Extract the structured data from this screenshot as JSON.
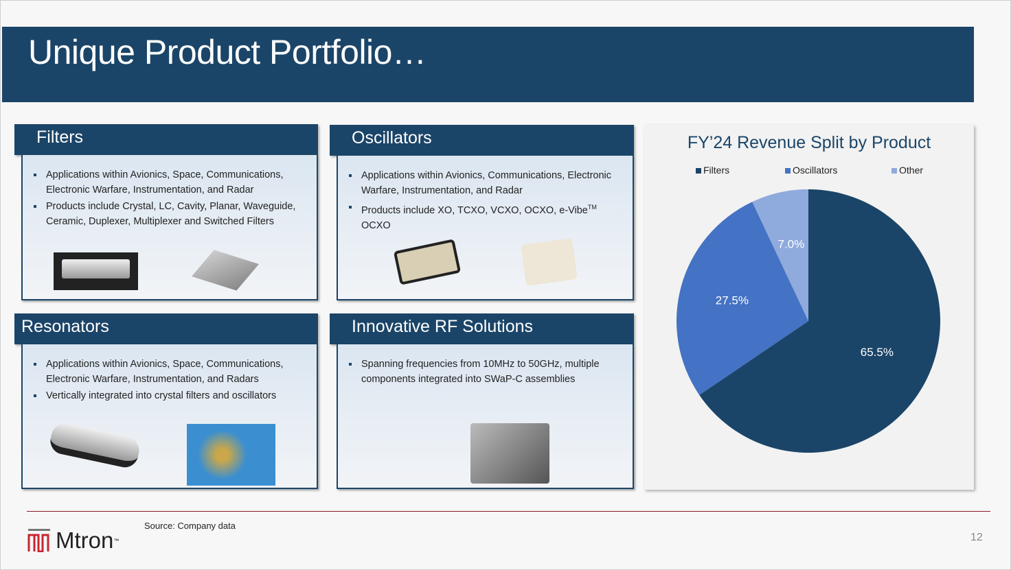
{
  "title": "Unique Product Portfolio…",
  "cards": [
    {
      "title": "Filters",
      "bullets": [
        "Applications within Avionics, Space, Communications, Electronic Warfare, Instrumentation, and Radar",
        "Products include Crystal, LC, Cavity, Planar, Waveguide, Ceramic, Duplexer, Multiplexer and Switched Filters"
      ]
    },
    {
      "title": "Oscillators",
      "bullets": [
        "Applications within Avionics, Communications, Electronic Warfare, Instrumentation, and Radar",
        "Products include XO, TCXO, VCXO, OCXO, e-Vibe"
      ],
      "sup": "TM",
      "tail": " OCXO"
    },
    {
      "title": "Resonators",
      "bullets": [
        "Applications within Avionics, Space, Communications, Electronic Warfare, Instrumentation, and Radars",
        "Vertically integrated into crystal filters and oscillators"
      ]
    },
    {
      "title": "Innovative RF Solutions",
      "bullets": [
        "Spanning frequencies from 10MHz to 50GHz, multiple components integrated into SWaP-C assemblies"
      ]
    }
  ],
  "chart_data": {
    "type": "pie",
    "title": "FY’24 Revenue Split by Product",
    "categories": [
      "Filters",
      "Oscillators",
      "Other"
    ],
    "values": [
      65.5,
      27.5,
      7.0
    ],
    "labels": [
      "65.5%",
      "27.5%",
      "7.0%"
    ],
    "colors": [
      "#1b4568",
      "#4472c4",
      "#8faadc"
    ],
    "legend": "top"
  },
  "footer": {
    "source": "Source: Company data",
    "logo": "Mtron",
    "page": "12"
  }
}
